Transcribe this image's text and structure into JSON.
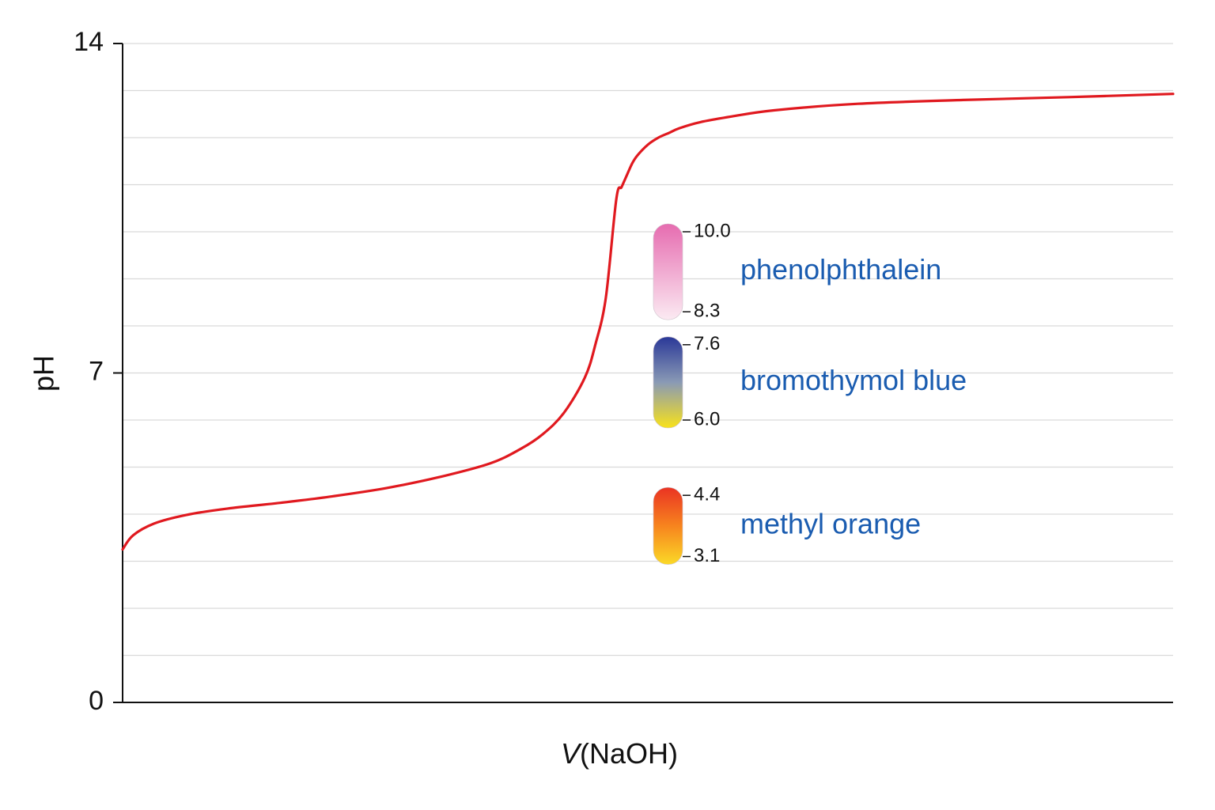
{
  "chart_data": {
    "type": "line",
    "xlabel_italic": "V",
    "xlabel_rest": "(NaOH)",
    "ylabel": "pH",
    "ylim": [
      0,
      14
    ],
    "yticks": [
      {
        "value": 0,
        "label": "0"
      },
      {
        "value": 7,
        "label": "7"
      },
      {
        "value": 14,
        "label": "14"
      }
    ],
    "minor_grid_step": 1,
    "grid": true,
    "line_color": "#e0191f",
    "label_color": "#1a5cb0",
    "xlim": [
      0,
      1
    ],
    "series": [
      {
        "x": [
          0.0,
          0.01,
          0.03,
          0.06,
          0.1,
          0.15,
          0.2,
          0.25,
          0.3,
          0.35,
          0.38,
          0.4,
          0.42,
          0.44,
          0.45,
          0.46,
          0.47,
          0.475,
          0.48,
          0.485,
          0.49,
          0.5,
          0.51,
          0.52,
          0.53,
          0.55,
          0.58,
          0.62,
          0.7,
          0.8,
          0.9,
          1.0
        ],
        "y": [
          3.25,
          3.55,
          3.8,
          3.98,
          4.12,
          4.24,
          4.38,
          4.55,
          4.78,
          5.08,
          5.4,
          5.7,
          6.15,
          6.9,
          7.6,
          8.6,
          10.7,
          10.95,
          11.2,
          11.45,
          11.62,
          11.85,
          12.0,
          12.1,
          12.2,
          12.33,
          12.45,
          12.58,
          12.72,
          12.8,
          12.86,
          12.93
        ]
      }
    ],
    "indicators": [
      {
        "name": "phenolphthalein",
        "low": 8.3,
        "high": 10.0,
        "low_label": "8.3",
        "high_label": "10.0",
        "color_low": "#fbeaf2",
        "color_high": "#e66cb0"
      },
      {
        "name": "bromothymol blue",
        "low": 6.0,
        "high": 7.6,
        "low_label": "6.0",
        "high_label": "7.6",
        "color_low": "#f8e21a",
        "color_mid": "#8a9ab5",
        "color_high": "#2a3898"
      },
      {
        "name": "methyl orange",
        "low": 3.1,
        "high": 4.4,
        "low_label": "3.1",
        "high_label": "4.4",
        "color_low": "#fbd927",
        "color_mid": "#f7841e",
        "color_high": "#ea3323"
      }
    ]
  }
}
